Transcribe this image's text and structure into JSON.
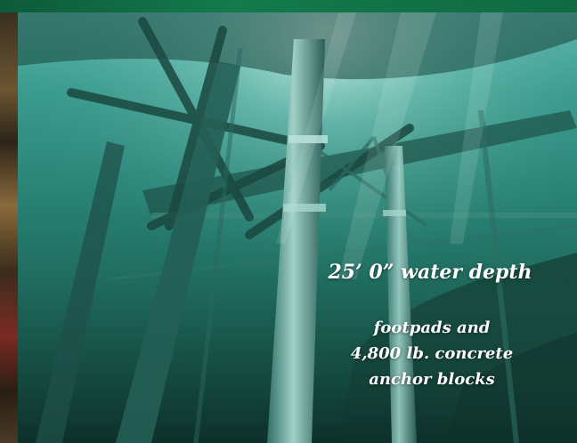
{
  "captions": {
    "water_depth": "25’ 0” water depth",
    "anchor_line1": "footpads and",
    "anchor_line2": "4,800 lb. concrete",
    "anchor_line3": "anchor blocks"
  },
  "colors": {
    "header_band": "#137a4c",
    "water_light": "#7fd3c6",
    "water_mid": "#2f8f80",
    "water_dark": "#0e3c34",
    "caption_text": "#ffffff"
  }
}
